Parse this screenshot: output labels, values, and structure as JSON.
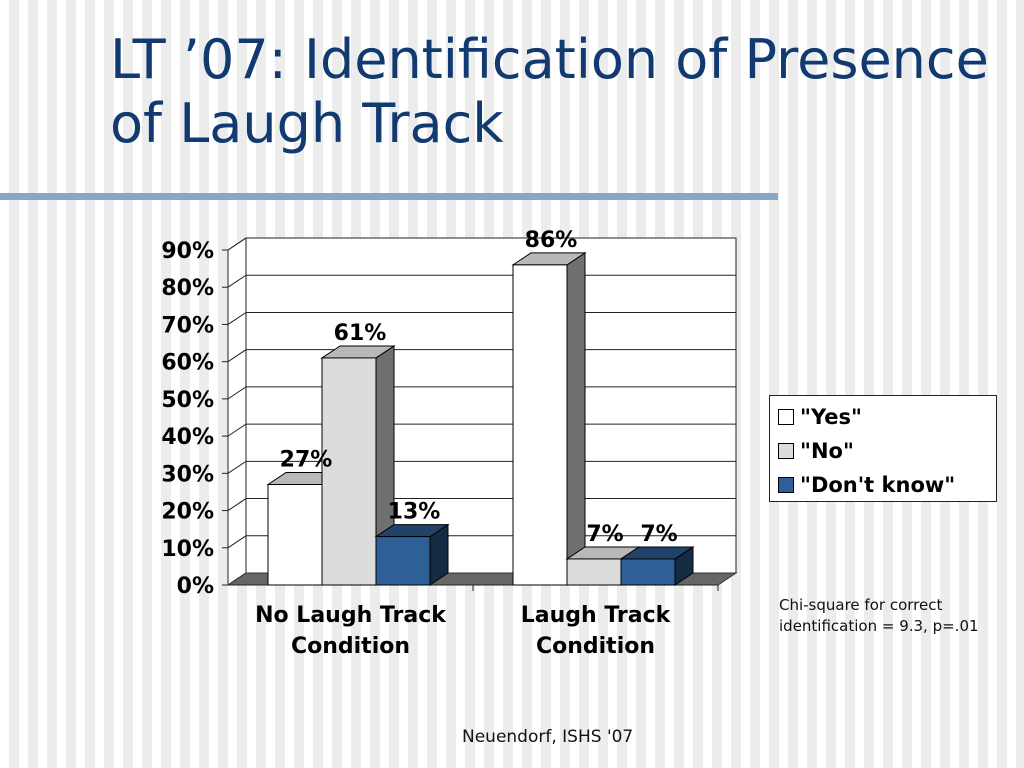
{
  "slide": {
    "title": "LT ’07:  Identification of Presence of Laugh Track",
    "footer": "Neuendorf, ISHS '07",
    "note": "Chi-square for correct identification = 9.3, p=.01"
  },
  "colors": {
    "title": "#103a70",
    "yes": "#ffffff",
    "no": "#dcdcdc",
    "dont_know": "#2e5f96",
    "floor": "#666666",
    "bar_side": "#707070"
  },
  "chart_data": {
    "type": "bar",
    "title": "",
    "xlabel": "",
    "ylabel": "",
    "ylim": [
      0,
      0.9
    ],
    "y_ticks": [
      "0%",
      "10%",
      "20%",
      "30%",
      "40%",
      "50%",
      "60%",
      "70%",
      "80%",
      "90%"
    ],
    "categories": [
      [
        "No Laugh Track",
        "Condition"
      ],
      [
        "Laugh Track",
        "Condition"
      ]
    ],
    "series": [
      {
        "name": "\"Yes\"",
        "values": [
          0.27,
          0.86
        ],
        "labels": [
          "27%",
          "86%"
        ],
        "color_key": "yes"
      },
      {
        "name": "\"No\"",
        "values": [
          0.61,
          0.07
        ],
        "labels": [
          "61%",
          "7%"
        ],
        "color_key": "no"
      },
      {
        "name": "\"Don't know\"",
        "values": [
          0.13,
          0.07
        ],
        "labels": [
          "13%",
          "7%"
        ],
        "color_key": "dont_know"
      }
    ],
    "grid": true,
    "three_d": true,
    "legend_position": "right"
  }
}
